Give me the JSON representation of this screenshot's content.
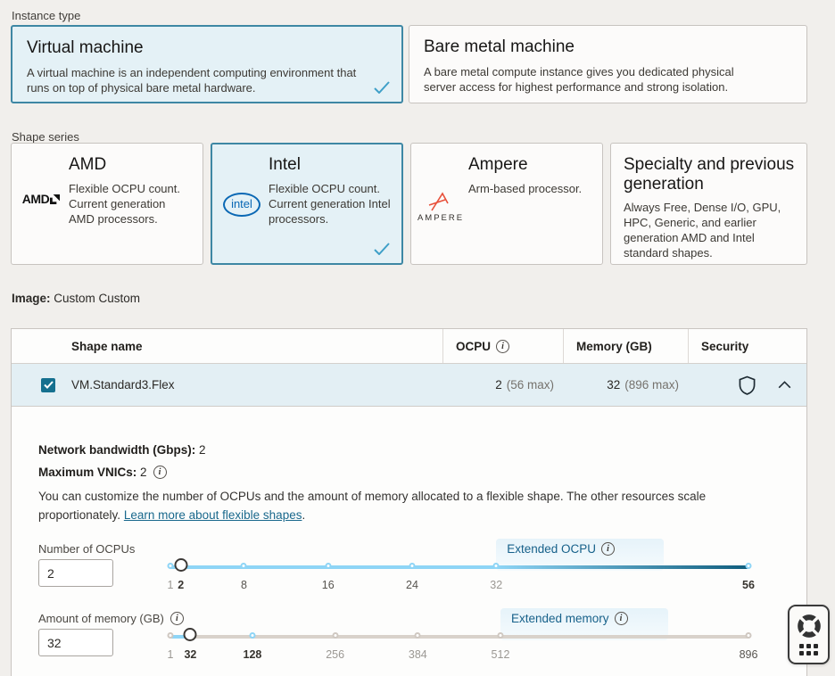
{
  "icons": {
    "info": "i",
    "check": "check-mark",
    "shield": "shield-outline",
    "chevron": "chevron-up",
    "life_buoy": "life-buoy",
    "drag": "grid-dots"
  },
  "colors": {
    "page_bg": "#f1efec",
    "selected_bg": "#e4f1f6",
    "selected_border": "#3e87a4",
    "row_selected_bg": "#e3eff4",
    "accent_teal": "#19688c",
    "slider_blue": "#8ed5f6",
    "slider_dark_teal": "#0f5d7d",
    "slider_gray": "#d9d2cb",
    "checkbox": "#15708f",
    "intel_blue": "#0a68b4",
    "ampere_red": "#e8503a"
  },
  "instance_type": {
    "label": "Instance type",
    "cards": [
      {
        "title": "Virtual machine",
        "description": "A virtual machine is an independent computing environment that runs on top of physical bare metal hardware.",
        "selected": true
      },
      {
        "title": "Bare metal machine",
        "description": "A bare metal compute instance gives you dedicated physical server access for highest performance and strong isolation.",
        "selected": false
      }
    ]
  },
  "shape_series": {
    "label": "Shape series",
    "cards": [
      {
        "title": "AMD",
        "logo": "amd-logo",
        "description": "Flexible OCPU count. Current generation AMD processors.",
        "selected": false
      },
      {
        "title": "Intel",
        "logo": "intel-logo",
        "description": "Flexible OCPU count. Current generation Intel processors.",
        "selected": true
      },
      {
        "title": "Ampere",
        "logo": "ampere-logo",
        "description": "Arm-based processor.",
        "selected": false
      },
      {
        "title": "Specialty and previous generation",
        "logo": "",
        "description": "Always Free, Dense I/O, GPU, HPC, Generic, and earlier generation AMD and Intel standard shapes.",
        "selected": false
      }
    ]
  },
  "image_info": {
    "label": "Image:",
    "value": "Custom Custom"
  },
  "shape_table": {
    "columns": {
      "name": "Shape name",
      "ocpu": "OCPU",
      "memory": "Memory (GB)",
      "security": "Security"
    },
    "row": {
      "name": "VM.Standard3.Flex",
      "ocpu": "2",
      "ocpu_max": "(56 max)",
      "memory": "32",
      "memory_max": "(896 max)",
      "selected": true,
      "expanded": true
    }
  },
  "details": {
    "bandwidth_label": "Network bandwidth (Gbps):",
    "bandwidth_value": "2",
    "vnics_label": "Maximum VNICs:",
    "vnics_value": "2",
    "paragraph": "You can customize the number of OCPUs and the amount of memory allocated to a flexible shape. The other resources scale proportionately.",
    "link_text": "Learn more about flexible shapes",
    "link_suffix": ".",
    "ocpu_slider": {
      "label": "Number of OCPUs",
      "value": "2",
      "extended_label": "Extended OCPU",
      "min": 1,
      "max": 56,
      "extended_from": 32,
      "handle_at": 2,
      "segments": [
        {
          "from": 1,
          "to": 32,
          "color": "#8ed5f6"
        },
        {
          "from": 32,
          "to": 56,
          "from_color": "#8ed5f6",
          "to_color": "#0f5d7d"
        }
      ],
      "dots": [
        {
          "v": 1,
          "style": "blue"
        },
        {
          "v": 8,
          "style": "blue"
        },
        {
          "v": 16,
          "style": "blue"
        },
        {
          "v": 24,
          "style": "blue"
        },
        {
          "v": 32,
          "style": "blue"
        },
        {
          "v": 56,
          "style": "blue"
        }
      ],
      "tick_labels": [
        {
          "v": 1,
          "text": "1",
          "tone": "dim"
        },
        {
          "v": 2,
          "text": "2",
          "tone": "strong"
        },
        {
          "v": 8,
          "text": "8",
          "tone": "mid"
        },
        {
          "v": 16,
          "text": "16",
          "tone": "mid"
        },
        {
          "v": 24,
          "text": "24",
          "tone": "mid"
        },
        {
          "v": 32,
          "text": "32",
          "tone": "dim"
        },
        {
          "v": 56,
          "text": "56",
          "tone": "strong"
        }
      ]
    },
    "memory_slider": {
      "label": "Amount of memory (GB)",
      "value": "32",
      "extended_label": "Extended memory",
      "min": 1,
      "max": 896,
      "extended_from": 512,
      "handle_at": 32,
      "segments": [
        {
          "from": 1,
          "to": 32,
          "color": "#8ed5f6"
        },
        {
          "from": 32,
          "to": 896,
          "color": "#d9d2cb"
        }
      ],
      "dots": [
        {
          "v": 1,
          "style": "gray"
        },
        {
          "v": 128,
          "style": "blue"
        },
        {
          "v": 256,
          "style": "gray"
        },
        {
          "v": 384,
          "style": "gray"
        },
        {
          "v": 512,
          "style": "gray"
        },
        {
          "v": 896,
          "style": "gray"
        }
      ],
      "tick_labels": [
        {
          "v": 1,
          "text": "1",
          "tone": "dim"
        },
        {
          "v": 32,
          "text": "32",
          "tone": "strong"
        },
        {
          "v": 128,
          "text": "128",
          "tone": "strong"
        },
        {
          "v": 256,
          "text": "256",
          "tone": "dim"
        },
        {
          "v": 384,
          "text": "384",
          "tone": "dim"
        },
        {
          "v": 512,
          "text": "512",
          "tone": "dim"
        },
        {
          "v": 896,
          "text": "896",
          "tone": "mid"
        }
      ]
    }
  }
}
